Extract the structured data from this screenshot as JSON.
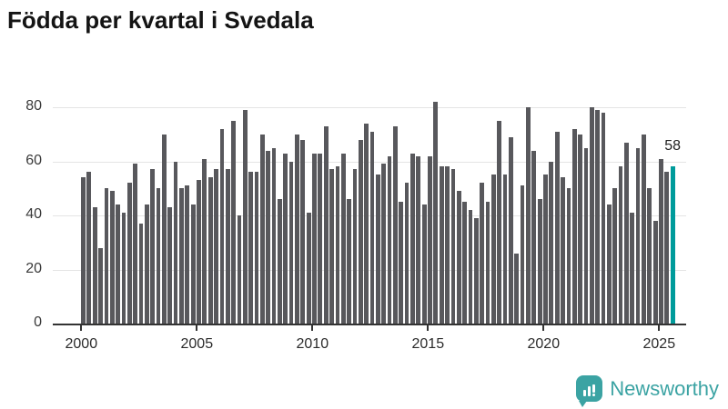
{
  "title": "Födda per kvartal i Svedala",
  "annotation": {
    "last_value_label": "58"
  },
  "branding": {
    "name": "Newsworthy",
    "color": "#3ba3a3"
  },
  "chart_data": {
    "type": "bar",
    "title": "Födda per kvartal i Svedala",
    "xlabel": "",
    "ylabel": "",
    "start_year": 2000,
    "start_quarter": 1,
    "period": "quarterly",
    "x_tick_labels": [
      "2000",
      "2005",
      "2010",
      "2015",
      "2020",
      "2025"
    ],
    "y_ticks": [
      0,
      20,
      40,
      60,
      80
    ],
    "ylim": [
      0,
      88
    ],
    "grid": true,
    "bar_color": "#58585c",
    "highlight_color": "#009b9b",
    "highlight_last": true,
    "values": [
      54,
      56,
      43,
      28,
      50,
      49,
      44,
      41,
      52,
      59,
      37,
      44,
      57,
      50,
      70,
      43,
      60,
      50,
      51,
      44,
      53,
      61,
      54,
      57,
      72,
      57,
      75,
      40,
      79,
      56,
      56,
      70,
      64,
      65,
      46,
      63,
      60,
      70,
      68,
      41,
      63,
      63,
      73,
      57,
      58,
      63,
      46,
      57,
      68,
      74,
      71,
      55,
      59,
      62,
      73,
      45,
      52,
      63,
      62,
      44,
      62,
      82,
      58,
      58,
      57,
      49,
      45,
      42,
      39,
      52,
      45,
      55,
      75,
      55,
      69,
      26,
      51,
      80,
      64,
      46,
      55,
      60,
      71,
      54,
      50,
      72,
      70,
      65,
      80,
      79,
      78,
      44,
      50,
      58,
      67,
      41,
      65,
      70,
      50,
      38,
      61,
      56,
      58
    ]
  }
}
